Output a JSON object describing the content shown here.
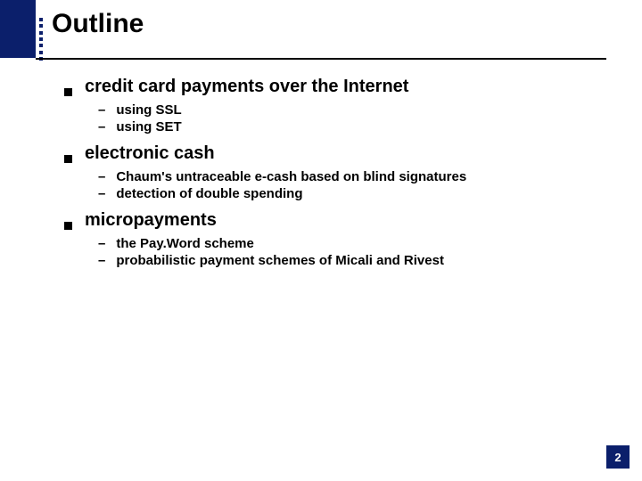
{
  "colors": {
    "accent": "#0b1f6b",
    "text": "#000000",
    "background": "#ffffff"
  },
  "title": "Outline",
  "sections": [
    {
      "heading": "credit card payments over the Internet",
      "items": [
        "using SSL",
        "using SET"
      ]
    },
    {
      "heading": "electronic cash",
      "items": [
        "Chaum's untraceable e-cash based on blind signatures",
        "detection of double spending"
      ]
    },
    {
      "heading": "micropayments",
      "items": [
        "the Pay.Word scheme",
        "probabilistic payment schemes of Micali and Rivest"
      ]
    }
  ],
  "page_number": "2"
}
